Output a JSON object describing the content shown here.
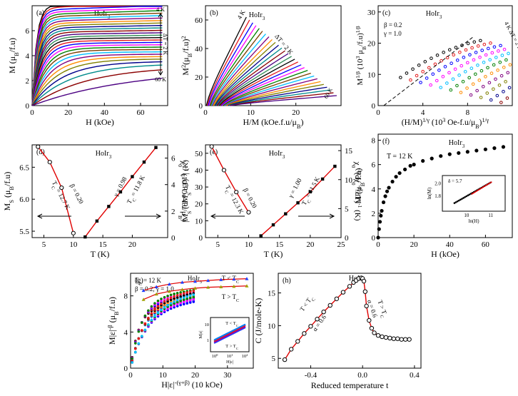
{
  "chart_data": [
    {
      "id": "a",
      "type": "line",
      "panel_label": "(a)",
      "compound": "HoIr",
      "compound_sub": "3",
      "xlabel": "H (kOe)",
      "ylabel": "M (μ",
      "ylabel_sub": "B",
      "ylabel_tail": "/f.u)",
      "xlim": [
        0,
        75
      ],
      "ylim": [
        0,
        8
      ],
      "xticks": [
        0,
        20,
        40,
        60
      ],
      "yticks": [
        0,
        2,
        4,
        6
      ],
      "xtick_labels": [
        "0",
        "20",
        "40",
        "60"
      ],
      "ytick_labels": [
        "0",
        "2",
        "4",
        "6"
      ],
      "annotations": [
        "4 K",
        "ΔT = 2 K",
        "60 K"
      ],
      "series_description": "M(H) isotherms from 4 K to 60 K in 2 K steps",
      "curves": {
        "count": 29,
        "M_at_70kOe_low_T": 8.0,
        "M_at_70kOe_high_T": 3.0
      },
      "colors": [
        "#000000",
        "#e41a1c",
        "#0000ff",
        "#ff00ff",
        "#008000",
        "#7b3f00",
        "#00bfff",
        "#800080",
        "#ff8c00",
        "#808000",
        "#00008b",
        "#008b8b",
        "#8b0000",
        "#4b0082",
        "#2e8b57"
      ]
    },
    {
      "id": "b",
      "type": "line",
      "panel_label": "(b)",
      "compound": "HoIr",
      "compound_sub": "3",
      "xlabel": "H/M (kOe.f.u/μ",
      "xlabel_sub": "B",
      "xlabel_tail": ")",
      "ylabel": "M",
      "ylabel_sup": "2",
      "ylabel_tail": "(μ",
      "ylabel_sub": "B",
      "ylabel_tail2": "/f.u)",
      "ylabel_sup2": "2",
      "xlim": [
        0,
        30
      ],
      "ylim": [
        0,
        70
      ],
      "xticks": [
        0,
        10,
        20
      ],
      "yticks": [
        0,
        20,
        40,
        60
      ],
      "xtick_labels": [
        "0",
        "10",
        "20"
      ],
      "ytick_labels": [
        "0",
        "20",
        "40",
        "60"
      ],
      "annotations": [
        "4 K",
        "ΔT = 2 K",
        "60 K"
      ]
    },
    {
      "id": "c",
      "type": "scatter",
      "panel_label": "(c)",
      "compound": "HoIr",
      "compound_sub": "3",
      "xlabel": "(H/M)",
      "xlabel_sup": "1/γ",
      "xlabel_mid": " (10",
      "xlabel_sup2": "3",
      "xlabel_tail": " Oe-f.u/μ",
      "xlabel_sub": "B",
      "xlabel_end": ")",
      "xlabel_sup3": "1/γ",
      "ylabel": "M",
      "ylabel_sup": "1/β",
      "ylabel_mid": " (10",
      "ylabel_sup2": "3",
      "ylabel_tail": " μ",
      "ylabel_sub": "B",
      "ylabel_end": "/f.u)",
      "ylabel_sup3": "1/β",
      "xlim": [
        0,
        12
      ],
      "ylim": [
        0,
        32
      ],
      "xticks": [
        0,
        4,
        8
      ],
      "yticks": [
        0,
        10,
        20,
        30
      ],
      "xtick_labels": [
        "0",
        "4",
        "8"
      ],
      "ytick_labels": [
        "0",
        "10",
        "20",
        "30"
      ],
      "annotations": [
        "β = 0.2",
        "γ = 1.0",
        "4 K",
        "ΔT = 2 K",
        "24 K"
      ]
    },
    {
      "id": "d",
      "type": "scatter",
      "panel_label": "(d)",
      "compound": "HoIr",
      "compound_sub": "3",
      "xlabel": "T (K)",
      "ylabel": "M",
      "ylabel_sub": "S",
      "ylabel_tail": " (μ",
      "ylabel_sub2": "B",
      "ylabel_end": "/f.u)",
      "y2label": "χ",
      "y2label_sub": "0",
      "y2label_sup": "-1",
      "y2label_tail": " (10",
      "y2label_sup2": "3",
      "y2label_end": " Oe-f.u/μ",
      "y2label_sub2": "B",
      "y2label_close": ")",
      "xlim": [
        3,
        26
      ],
      "ylim": [
        5.4,
        6.85
      ],
      "y2lim": [
        0,
        7
      ],
      "xticks": [
        5,
        10,
        15,
        20
      ],
      "yticks": [
        5.5,
        6.0,
        6.5
      ],
      "y2ticks": [
        0,
        2,
        4,
        6
      ],
      "xtick_labels": [
        "5",
        "10",
        "15",
        "20"
      ],
      "ytick_labels": [
        "5.5",
        "6.0",
        "6.5"
      ],
      "y2tick_labels": [
        "0",
        "2",
        "4",
        "6"
      ],
      "series": [
        {
          "name": "Ms",
          "x": [
            4,
            6,
            8,
            10
          ],
          "y": [
            6.82,
            6.58,
            6.18,
            5.47
          ]
        },
        {
          "name": "chi0_inv",
          "x": [
            12,
            14,
            16,
            18,
            20,
            22,
            24
          ],
          "y": [
            0.05,
            1.25,
            2.35,
            3.45,
            4.6,
            5.7,
            6.8
          ]
        }
      ],
      "annotations": [
        "T",
        "C",
        " = 12.7 K",
        "β = 0.20",
        "γ = 0.98",
        "T",
        "C",
        " = 11.8 K"
      ]
    },
    {
      "id": "e",
      "type": "scatter",
      "panel_label": "(e)",
      "compound": "HoIr",
      "compound_sub": "3",
      "xlabel": "T (K)",
      "ylabel": "|M",
      "ylabel_sub": "S",
      "ylabel_tail": " (dM",
      "ylabel_sub2": "S",
      "ylabel_end": "/dT)",
      "ylabel_sup": "-1",
      "ylabel_close": "| (K)",
      "y2label": "χ",
      "y2label_sub": "0",
      "y2label_sup": "-1",
      "y2label_tail": "(dχ",
      "y2label_sub2": "0",
      "y2label_sup2": "-1",
      "y2label_end": "/dT)",
      "y2label_sup3": "-1",
      "y2label_close": " (K)",
      "xlim": [
        3,
        25
      ],
      "ylim": [
        0,
        55
      ],
      "y2lim": [
        0,
        16
      ],
      "xticks": [
        5,
        10,
        15,
        20,
        25
      ],
      "yticks": [
        0,
        10,
        20,
        30,
        40,
        50
      ],
      "y2ticks": [
        0,
        5,
        10,
        15
      ],
      "xtick_labels": [
        "5",
        "10",
        "15",
        "20",
        "25"
      ],
      "ytick_labels": [
        "0",
        "10",
        "20",
        "30",
        "40",
        "50"
      ],
      "y2tick_labels": [
        "0",
        "5",
        "10",
        "15"
      ],
      "series": [
        {
          "name": "Ms_dMs",
          "x": [
            4,
            6,
            8,
            10
          ],
          "y": [
            54,
            40,
            27,
            15
          ]
        },
        {
          "name": "chi0_dchi0",
          "x": [
            12,
            14,
            16,
            18,
            20,
            22,
            24
          ],
          "y": [
            0.3,
            2.2,
            4.1,
            6.0,
            7.9,
            10.1,
            12.3
          ]
        }
      ],
      "annotations": [
        "T",
        "C",
        " = 12.3 K",
        "β = 0.20",
        "γ = 1.00",
        "T",
        "C",
        " = 11.5 K"
      ]
    },
    {
      "id": "f",
      "type": "scatter",
      "panel_label": "(f)",
      "compound": "HoIr",
      "compound_sub": "3",
      "xlabel": "H (kOe)",
      "ylabel": "M (μ",
      "ylabel_sub": "B",
      "ylabel_tail": "/f.u)",
      "xlim": [
        0,
        75
      ],
      "ylim": [
        0,
        8.5
      ],
      "xticks": [
        0,
        20,
        40,
        60
      ],
      "yticks": [
        0,
        2,
        4,
        6,
        8
      ],
      "xtick_labels": [
        "0",
        "20",
        "40",
        "60"
      ],
      "ytick_labels": [
        "0",
        "2",
        "4",
        "6",
        "8"
      ],
      "annotations": [
        "T = 12 K"
      ],
      "x": [
        0,
        0.5,
        1,
        1.5,
        2,
        3,
        4,
        5,
        6,
        8,
        10,
        12,
        15,
        18,
        20,
        25,
        30,
        35,
        40,
        45,
        50,
        55,
        60,
        65,
        70
      ],
      "y": [
        0,
        0.7,
        1.3,
        1.8,
        2.2,
        2.9,
        3.4,
        3.8,
        4.1,
        4.6,
        5.0,
        5.3,
        5.6,
        5.9,
        6.0,
        6.3,
        6.5,
        6.7,
        6.85,
        6.95,
        7.05,
        7.15,
        7.25,
        7.35,
        7.45
      ],
      "inset": {
        "xlabel": "ln(H)",
        "ylabel": "ln(M)",
        "annotation": "δ = 5.7",
        "xticks": [
          10,
          11
        ],
        "yticks": [
          1.8,
          2.0
        ],
        "xtick_labels": [
          "10",
          "11"
        ],
        "ytick_labels": [
          "1.8",
          "2.0"
        ],
        "xlim": [
          9.0,
          11.6
        ],
        "ylim": [
          1.55,
          2.12
        ]
      }
    },
    {
      "id": "g",
      "type": "scatter",
      "panel_label": "(g)",
      "compound": "HoIr",
      "compound_sub": "3",
      "xlabel": "H|ε|",
      "xlabel_sup": "-(γ+β)",
      "xlabel_tail": " (10 kOe)",
      "ylabel": "M|ε|",
      "ylabel_sup": "-β",
      "ylabel_tail": " (μ",
      "ylabel_sub": "B",
      "ylabel_end": "/f.u)",
      "xlim": [
        0,
        38
      ],
      "ylim": [
        0,
        10.5
      ],
      "xticks": [
        0,
        10,
        20,
        30
      ],
      "yticks": [
        0,
        4,
        8
      ],
      "xtick_labels": [
        "0",
        "10",
        "20",
        "30"
      ],
      "ytick_labels": [
        "0",
        "4",
        "8"
      ],
      "annotations": [
        "T",
        "C",
        " = 12 K",
        "HoIr",
        "3",
        "β = 0.2,  γ = 1.0",
        "T < T",
        "C",
        "T > T",
        "C"
      ],
      "series": [
        {
          "name": "T < Tc",
          "color": "#2040ff",
          "x": [
            4,
            8,
            12,
            16,
            20,
            24,
            28,
            32,
            36
          ],
          "y": [
            8.6,
            9.0,
            9.3,
            9.5,
            9.6,
            9.7,
            9.8,
            9.85,
            9.9
          ]
        },
        {
          "name": "T > Tc",
          "color": "#a0a000",
          "x": [
            4,
            8,
            12,
            16,
            20,
            24,
            28,
            32,
            36
          ],
          "y": [
            7.6,
            8.2,
            8.5,
            8.7,
            8.85,
            8.95,
            9.0,
            9.05,
            9.1
          ]
        }
      ],
      "inset": {
        "xlabel": "H|ε|",
        "ylabel": "M|ε|",
        "annotations": [
          "T < T",
          "C",
          "T > T",
          "C"
        ],
        "xtick_labels": [
          "10",
          "10",
          "10"
        ],
        "xtick_sups": [
          "0",
          "1",
          "2"
        ],
        "ytick_labels": [
          "1",
          "10"
        ]
      }
    },
    {
      "id": "h",
      "type": "scatter",
      "panel_label": "(h)",
      "compound": "HoIr",
      "compound_sub": "3",
      "xlabel": "Reduced temperature t",
      "ylabel": "C (J/mole-K)",
      "xlim": [
        -0.65,
        0.45
      ],
      "ylim": [
        3.5,
        18
      ],
      "xticks": [
        -0.4,
        0.0,
        0.4
      ],
      "yticks": [
        5,
        10,
        15
      ],
      "xtick_labels": [
        "-0.4",
        "0.0",
        "0.4"
      ],
      "ytick_labels": [
        "5",
        "10",
        "15"
      ],
      "annotations": [
        "T < T",
        "C",
        "α = 0.6",
        "α = 0.6",
        "T > T",
        "C"
      ],
      "x": [
        -0.6,
        -0.55,
        -0.5,
        -0.45,
        -0.4,
        -0.35,
        -0.3,
        -0.25,
        -0.2,
        -0.15,
        -0.1,
        -0.07,
        -0.05,
        -0.03,
        -0.01,
        0.0,
        0.01,
        0.02,
        0.03,
        0.05,
        0.07,
        0.09,
        0.12,
        0.15,
        0.18,
        0.21,
        0.24,
        0.27,
        0.3,
        0.33,
        0.36
      ],
      "y": [
        4.8,
        6.4,
        7.6,
        8.8,
        9.9,
        11.0,
        12.1,
        13.1,
        14.1,
        15.1,
        16.0,
        16.6,
        16.9,
        17.2,
        17.3,
        17.2,
        16.8,
        15.2,
        13.0,
        10.8,
        9.6,
        8.9,
        8.5,
        8.3,
        8.2,
        8.1,
        8.0,
        8.0,
        7.9,
        7.9,
        7.9
      ]
    }
  ]
}
